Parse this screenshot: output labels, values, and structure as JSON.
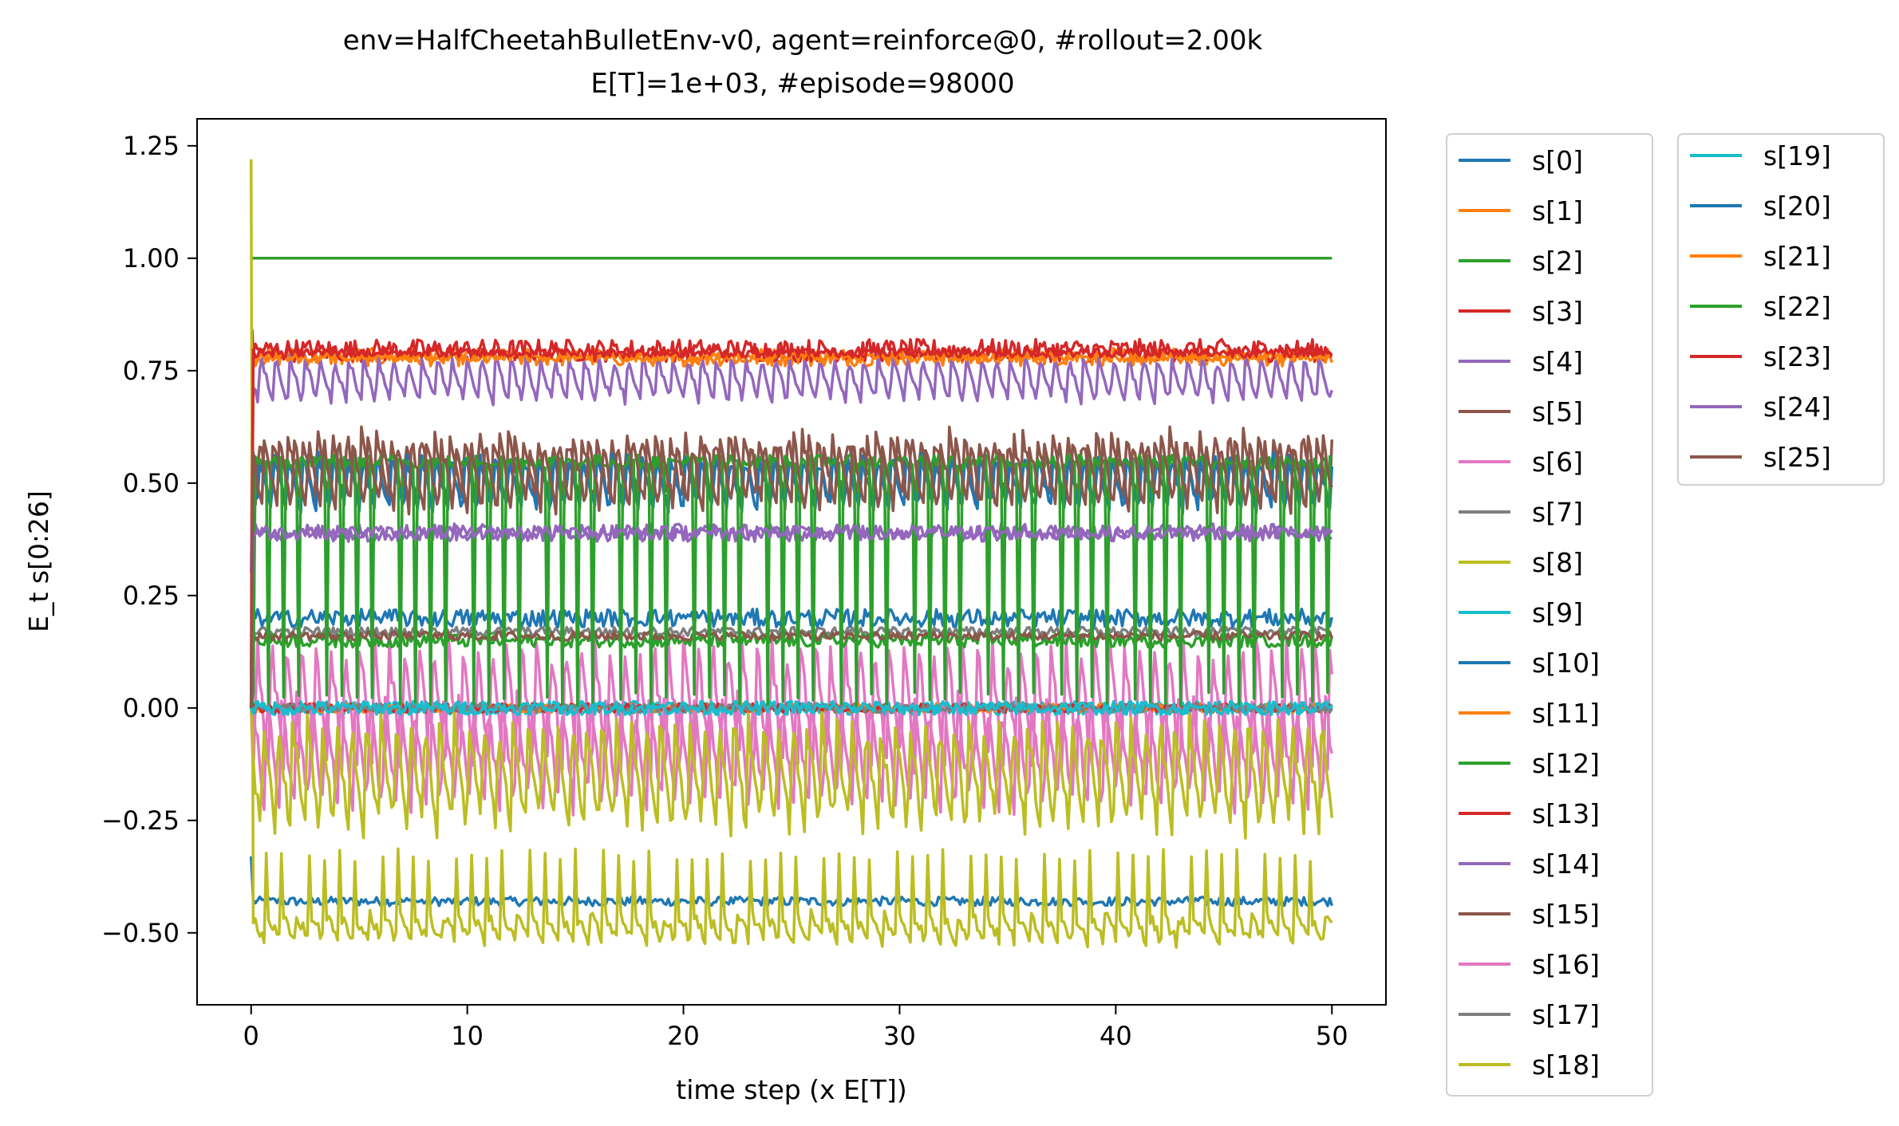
{
  "chart_data": {
    "type": "line",
    "title_line1": "env=HalfCheetahBulletEnv-v0, agent=reinforce@0, #rollout=2.00k",
    "title_line2": "E[T]=1e+03, #episode=98000",
    "xlabel": "time step (x E[T])",
    "ylabel": "E_t  s[0:26]",
    "xlim": [
      -2.5,
      52.5
    ],
    "ylim": [
      -0.66,
      1.31
    ],
    "xticks": [
      0,
      10,
      20,
      30,
      40,
      50
    ],
    "xtick_labels": [
      "0",
      "10",
      "20",
      "30",
      "40",
      "50"
    ],
    "yticks": [
      -0.5,
      -0.25,
      0.0,
      0.25,
      0.5,
      0.75,
      1.0,
      1.25
    ],
    "ytick_labels": [
      "−0.50",
      "−0.25",
      "0.00",
      "0.25",
      "0.50",
      "0.75",
      "1.00",
      "1.25"
    ],
    "grid": false,
    "legend_position": "outside-right",
    "x_range": [
      0,
      50
    ],
    "num_points": 501,
    "series": [
      {
        "name": "s[0]",
        "color": "#1f77b4",
        "start": -0.33,
        "base": -0.43,
        "amp": 0.01,
        "shape": "noise",
        "spike": 0
      },
      {
        "name": "s[1]",
        "color": "#ff7f0e",
        "start": 0.8,
        "base": 0.78,
        "amp": 0.02,
        "shape": "noise",
        "spike": 0
      },
      {
        "name": "s[2]",
        "color": "#2ca02c",
        "start": 1.0,
        "base": 1.0,
        "amp": 0.0,
        "shape": "flat",
        "spike": 0
      },
      {
        "name": "s[3]",
        "color": "#d62728",
        "start": 0.0,
        "base": 0.795,
        "amp": 0.025,
        "shape": "noise",
        "spike": 0.84
      },
      {
        "name": "s[4]",
        "color": "#9467bd",
        "start": 0.3,
        "base": 0.73,
        "amp": 0.05,
        "shape": "sawtooth",
        "spike": 0
      },
      {
        "name": "s[5]",
        "color": "#8c564b",
        "start": 0.0,
        "base": 0.53,
        "amp": 0.08,
        "shape": "sawtooth",
        "spike": 0
      },
      {
        "name": "s[6]",
        "color": "#e377c2",
        "start": 0.0,
        "base": 0.0,
        "amp": 0.15,
        "shape": "sawtooth",
        "spike": 0
      },
      {
        "name": "s[7]",
        "color": "#7f7f7f",
        "start": 0.0,
        "base": 0.17,
        "amp": 0.01,
        "shape": "noise",
        "spike": 0
      },
      {
        "name": "s[8]",
        "color": "#bcbd22",
        "start": 1.22,
        "base": -0.46,
        "amp": 0.06,
        "shape": "spiky-down",
        "spike": 0
      },
      {
        "name": "s[9]",
        "color": "#17becf",
        "start": 0.0,
        "base": 0.0,
        "amp": 0.015,
        "shape": "noise",
        "spike": 0
      },
      {
        "name": "s[10]",
        "color": "#1f77b4",
        "start": 0.0,
        "base": 0.2,
        "amp": 0.02,
        "shape": "noise",
        "spike": 0
      },
      {
        "name": "s[11]",
        "color": "#ff7f0e",
        "start": 0.0,
        "base": 0.0,
        "amp": 0.01,
        "shape": "noise",
        "spike": 0
      },
      {
        "name": "s[12]",
        "color": "#2ca02c",
        "start": 0.0,
        "base": 0.15,
        "amp": 0.015,
        "shape": "noise",
        "spike": 0
      },
      {
        "name": "s[13]",
        "color": "#d62728",
        "start": 0.0,
        "base": 0.0,
        "amp": 0.01,
        "shape": "noise",
        "spike": 0
      },
      {
        "name": "s[14]",
        "color": "#9467bd",
        "start": 0.0,
        "base": 0.39,
        "amp": 0.02,
        "shape": "noise",
        "spike": 0
      },
      {
        "name": "s[15]",
        "color": "#8c564b",
        "start": 0.0,
        "base": 0.16,
        "amp": 0.01,
        "shape": "noise",
        "spike": 0
      },
      {
        "name": "s[16]",
        "color": "#e377c2",
        "start": 0.0,
        "base": -0.1,
        "amp": 0.12,
        "shape": "sawtooth",
        "spike": 0
      },
      {
        "name": "s[17]",
        "color": "#7f7f7f",
        "start": 0.0,
        "base": 0.0,
        "amp": 0.01,
        "shape": "noise",
        "spike": 0
      },
      {
        "name": "s[18]",
        "color": "#bcbd22",
        "start": 0.0,
        "base": -0.15,
        "amp": 0.12,
        "shape": "sawtooth",
        "spike": 0
      },
      {
        "name": "s[19]",
        "color": "#17becf",
        "start": 0.0,
        "base": 0.0,
        "amp": 0.015,
        "shape": "noise",
        "spike": 0
      },
      {
        "name": "s[20]",
        "color": "#1f77b4",
        "start": 0.0,
        "base": 0.5,
        "amp": 0.06,
        "shape": "sawtooth",
        "spike": 0
      },
      {
        "name": "s[21]",
        "color": "#ff7f0e",
        "start": 0.0,
        "base": 0.78,
        "amp": 0.01,
        "shape": "noise",
        "spike": 0
      },
      {
        "name": "s[22]",
        "color": "#2ca02c",
        "start": 0.0,
        "base": 0.35,
        "amp": 0.22,
        "shape": "dip",
        "spike": 0
      },
      {
        "name": "s[23]",
        "color": "#d62728",
        "start": 0.0,
        "base": 0.79,
        "amp": 0.01,
        "shape": "noise",
        "spike": 0
      },
      {
        "name": "s[24]",
        "color": "#9467bd",
        "start": 0.0,
        "base": 0.39,
        "amp": 0.015,
        "shape": "noise",
        "spike": 0
      },
      {
        "name": "s[25]",
        "color": "#8c564b",
        "start": 0.0,
        "base": 0.52,
        "amp": 0.08,
        "shape": "sawtooth",
        "spike": 0
      }
    ]
  }
}
